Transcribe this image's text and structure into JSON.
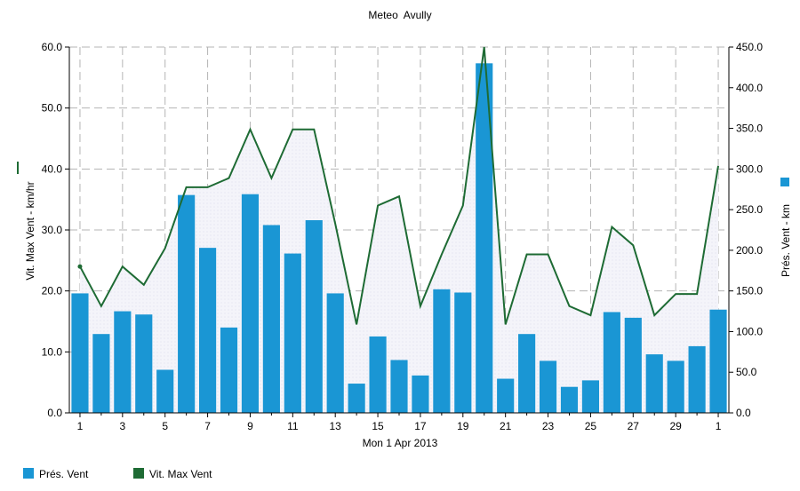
{
  "chart_data": {
    "type": "bar",
    "title": "Meteo  Avully",
    "xlabel": "Mon 1 Apr 2013",
    "x": [
      1,
      2,
      3,
      4,
      5,
      6,
      7,
      8,
      9,
      10,
      11,
      12,
      13,
      14,
      15,
      16,
      17,
      18,
      19,
      20,
      21,
      22,
      23,
      24,
      25,
      26,
      27,
      28,
      29,
      30,
      31
    ],
    "xticks": [
      "1",
      "3",
      "5",
      "7",
      "9",
      "11",
      "13",
      "15",
      "17",
      "19",
      "21",
      "23",
      "25",
      "27",
      "29",
      "1"
    ],
    "left_axis": {
      "label": "Vit. Max Vent - km/hr",
      "ylim": [
        0,
        60
      ],
      "ticks": [
        "0.0",
        "10.0",
        "20.0",
        "30.0",
        "40.0",
        "50.0",
        "60.0"
      ]
    },
    "right_axis": {
      "label": "Prés. Vent - km",
      "ylim": [
        0,
        450
      ],
      "ticks": [
        "0.0",
        "50.0",
        "100.0",
        "150.0",
        "200.0",
        "250.0",
        "300.0",
        "350.0",
        "400.0",
        "450.0"
      ]
    },
    "series": [
      {
        "name": "Prés. Vent",
        "type": "bar",
        "axis": "right",
        "color": "#1a96d4",
        "values": [
          147,
          97,
          125,
          121,
          53,
          268,
          203,
          105,
          269,
          231,
          196,
          237,
          147,
          36,
          94,
          65,
          46,
          152,
          148,
          430,
          42,
          97,
          64,
          32,
          40,
          124,
          117,
          72,
          64,
          82,
          127
        ]
      },
      {
        "name": "Vit. Max Vent",
        "type": "line",
        "axis": "left",
        "color": "#1e6b34",
        "values": [
          24,
          17.5,
          24,
          21,
          27,
          37,
          37,
          38.5,
          46.5,
          38.5,
          46.5,
          46.5,
          31,
          14.5,
          34,
          35.5,
          17.5,
          26,
          34,
          60,
          14.5,
          26,
          26,
          17.5,
          16,
          30.5,
          27.5,
          16,
          19.5,
          19.5,
          40.5
        ]
      }
    ],
    "grid": true,
    "legend_position": "bottom-left"
  }
}
